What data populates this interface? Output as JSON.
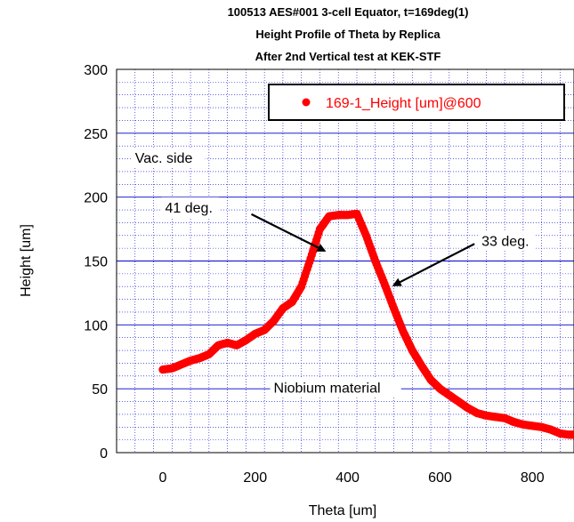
{
  "chart_data": {
    "type": "scatter",
    "title_lines": [
      "100513 AES#001 3-cell Equator, t=169deg(1)",
      "Height Profile of Theta by Replica",
      "After 2nd Vertical test at KEK-STF"
    ],
    "xlabel": "Theta [um]",
    "ylabel": "Height [um]",
    "xlim": [
      -100,
      890
    ],
    "ylim": [
      0,
      300
    ],
    "x_ticks": [
      0,
      200,
      400,
      600,
      800
    ],
    "y_ticks": [
      0,
      50,
      100,
      150,
      200,
      250,
      300
    ],
    "grid": true,
    "legend_position": "top-right",
    "series": [
      {
        "name": "169-1_Height [um]@600",
        "color": "#ff0000",
        "x": [
          0,
          20,
          40,
          60,
          80,
          100,
          120,
          140,
          160,
          180,
          200,
          220,
          240,
          260,
          280,
          300,
          320,
          340,
          360,
          380,
          400,
          420,
          440,
          460,
          480,
          500,
          520,
          540,
          560,
          580,
          600,
          620,
          640,
          660,
          680,
          700,
          720,
          740,
          760,
          780,
          800,
          820,
          840,
          860,
          880,
          890
        ],
        "y": [
          65,
          66,
          69,
          72,
          74,
          77,
          84,
          86,
          84,
          88,
          93,
          96,
          103,
          113,
          118,
          130,
          152,
          175,
          185,
          186,
          186,
          187,
          170,
          150,
          132,
          113,
          95,
          80,
          68,
          57,
          50,
          45,
          40,
          35,
          31,
          29,
          28,
          27,
          24,
          22,
          21,
          20,
          18,
          15,
          14,
          14
        ]
      }
    ],
    "annotations": [
      {
        "text": "Vac. side",
        "x": -60,
        "y": 227
      },
      {
        "text": "41 deg.",
        "x": 5,
        "y": 188,
        "arrow_to": [
          350,
          158
        ]
      },
      {
        "text": "33 deg.",
        "x": 690,
        "y": 162,
        "arrow_to": [
          500,
          131
        ]
      },
      {
        "text": "Niobium material",
        "x": 240,
        "y": 47
      }
    ]
  }
}
